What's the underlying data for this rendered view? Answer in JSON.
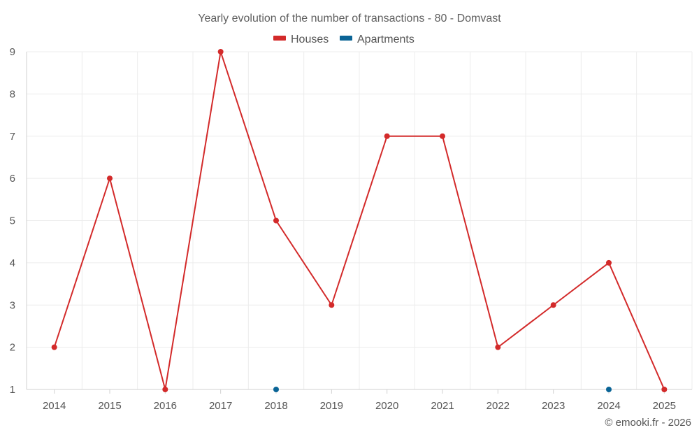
{
  "chart_data": {
    "type": "line",
    "title": "Yearly evolution of the number of transactions - 80 - Domvast",
    "categories": [
      "2014",
      "2015",
      "2016",
      "2017",
      "2018",
      "2019",
      "2020",
      "2021",
      "2022",
      "2023",
      "2024",
      "2025"
    ],
    "y_ticks": [
      "1",
      "2",
      "3",
      "4",
      "5",
      "6",
      "7",
      "8",
      "9"
    ],
    "ylim": [
      1,
      9
    ],
    "series": [
      {
        "name": "Houses",
        "color": "#d32a2a",
        "line": true,
        "values": [
          2,
          6,
          1,
          9,
          5,
          3,
          7,
          7,
          2,
          3,
          4,
          1
        ]
      },
      {
        "name": "Apartments",
        "color": "#0a6496",
        "line": false,
        "values": [
          null,
          null,
          null,
          null,
          1,
          null,
          null,
          null,
          null,
          null,
          1,
          null
        ]
      }
    ],
    "legend_position": "top-center",
    "grid": true
  },
  "credit": "© emooki.fr - 2026"
}
